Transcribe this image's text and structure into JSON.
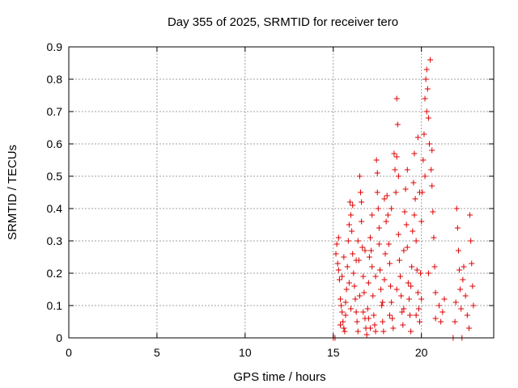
{
  "chart_data": {
    "type": "scatter",
    "title": "Day 355 of 2025, SRMTID for receiver tero",
    "xlabel": "GPS time / hours",
    "ylabel": "SRMTID / TECUs",
    "xlim": [
      0,
      24.1
    ],
    "ylim": [
      0,
      0.9
    ],
    "xticks": [
      "0",
      "5",
      "10",
      "15",
      "20"
    ],
    "xtick_values": [
      0,
      5,
      10,
      15,
      20
    ],
    "yticks": [
      "0",
      "0.1",
      "0.2",
      "0.3",
      "0.4",
      "0.5",
      "0.6",
      "0.7",
      "0.8",
      "0.9"
    ],
    "ytick_values": [
      0,
      0.1,
      0.2,
      0.3,
      0.4,
      0.5,
      0.6,
      0.7,
      0.8,
      0.9
    ],
    "grid": true,
    "marker": "+",
    "marker_color": "#dd0000",
    "series": [
      {
        "name": "tero",
        "points": [
          [
            15.0,
            0.0
          ],
          [
            15.1,
            0.0
          ],
          [
            15.15,
            0.26
          ],
          [
            15.2,
            0.29
          ],
          [
            15.25,
            0.23
          ],
          [
            15.3,
            0.21
          ],
          [
            15.35,
            0.18
          ],
          [
            15.4,
            0.12
          ],
          [
            15.45,
            0.1
          ],
          [
            15.5,
            0.08
          ],
          [
            15.55,
            0.05
          ],
          [
            15.6,
            0.03
          ],
          [
            15.65,
            0.02
          ],
          [
            15.7,
            0.11
          ],
          [
            15.75,
            0.15
          ],
          [
            15.8,
            0.22
          ],
          [
            15.85,
            0.3
          ],
          [
            15.9,
            0.35
          ],
          [
            15.95,
            0.42
          ],
          [
            16.0,
            0.38
          ],
          [
            16.05,
            0.33
          ],
          [
            16.1,
            0.26
          ],
          [
            16.15,
            0.2
          ],
          [
            16.2,
            0.16
          ],
          [
            16.25,
            0.12
          ],
          [
            16.3,
            0.08
          ],
          [
            16.35,
            0.05
          ],
          [
            16.4,
            0.02
          ],
          [
            16.45,
            0.24
          ],
          [
            16.5,
            0.5
          ],
          [
            16.55,
            0.45
          ],
          [
            16.6,
            0.36
          ],
          [
            16.65,
            0.28
          ],
          [
            16.7,
            0.19
          ],
          [
            16.75,
            0.14
          ],
          [
            16.8,
            0.06
          ],
          [
            16.85,
            0.03
          ],
          [
            16.9,
            0.01
          ],
          [
            16.95,
            0.09
          ],
          [
            17.0,
            0.17
          ],
          [
            17.05,
            0.25
          ],
          [
            17.1,
            0.31
          ],
          [
            17.15,
            0.27
          ],
          [
            17.2,
            0.22
          ],
          [
            17.25,
            0.13
          ],
          [
            17.3,
            0.07
          ],
          [
            17.35,
            0.04
          ],
          [
            17.4,
            0.02
          ],
          [
            17.45,
            0.55
          ],
          [
            17.5,
            0.51
          ],
          [
            17.55,
            0.4
          ],
          [
            17.6,
            0.34
          ],
          [
            17.65,
            0.21
          ],
          [
            17.7,
            0.15
          ],
          [
            17.75,
            0.1
          ],
          [
            17.8,
            0.05
          ],
          [
            17.85,
            0.02
          ],
          [
            17.9,
            0.18
          ],
          [
            17.95,
            0.26
          ],
          [
            18.0,
            0.36
          ],
          [
            18.05,
            0.44
          ],
          [
            18.1,
            0.38
          ],
          [
            18.15,
            0.29
          ],
          [
            18.2,
            0.23
          ],
          [
            18.25,
            0.16
          ],
          [
            18.3,
            0.11
          ],
          [
            18.35,
            0.06
          ],
          [
            18.4,
            0.03
          ],
          [
            18.45,
            0.57
          ],
          [
            18.5,
            0.52
          ],
          [
            18.55,
            0.45
          ],
          [
            18.6,
            0.74
          ],
          [
            18.65,
            0.66
          ],
          [
            18.7,
            0.32
          ],
          [
            18.75,
            0.24
          ],
          [
            18.8,
            0.19
          ],
          [
            18.85,
            0.13
          ],
          [
            18.9,
            0.08
          ],
          [
            18.95,
            0.04
          ],
          [
            19.0,
            0.27
          ],
          [
            19.05,
            0.39
          ],
          [
            19.1,
            0.46
          ],
          [
            19.15,
            0.35
          ],
          [
            19.2,
            0.28
          ],
          [
            19.25,
            0.17
          ],
          [
            19.3,
            0.12
          ],
          [
            19.35,
            0.07
          ],
          [
            19.4,
            0.02
          ],
          [
            19.45,
            0.22
          ],
          [
            19.5,
            0.33
          ],
          [
            19.55,
            0.48
          ],
          [
            19.6,
            0.57
          ],
          [
            19.65,
            0.43
          ],
          [
            19.7,
            0.3
          ],
          [
            19.75,
            0.21
          ],
          [
            19.8,
            0.14
          ],
          [
            19.85,
            0.09
          ],
          [
            19.9,
            0.05
          ],
          [
            19.95,
            0.2
          ],
          [
            20.0,
            0.36
          ],
          [
            20.05,
            0.45
          ],
          [
            20.1,
            0.55
          ],
          [
            20.15,
            0.63
          ],
          [
            20.2,
            0.74
          ],
          [
            20.25,
            0.8
          ],
          [
            20.3,
            0.83
          ],
          [
            20.35,
            0.77
          ],
          [
            20.4,
            0.68
          ],
          [
            20.45,
            0.6
          ],
          [
            20.5,
            0.86
          ],
          [
            20.55,
            0.52
          ],
          [
            20.6,
            0.47
          ],
          [
            20.65,
            0.39
          ],
          [
            20.7,
            0.31
          ],
          [
            20.75,
            0.22
          ],
          [
            20.8,
            0.14
          ],
          [
            21.0,
            0.1
          ],
          [
            21.1,
            0.05
          ],
          [
            21.2,
            0.08
          ],
          [
            21.3,
            0.12
          ],
          [
            21.8,
            0.0
          ],
          [
            21.9,
            0.05
          ],
          [
            21.95,
            0.11
          ],
          [
            22.0,
            0.4
          ],
          [
            22.05,
            0.34
          ],
          [
            22.1,
            0.27
          ],
          [
            22.15,
            0.21
          ],
          [
            22.2,
            0.15
          ],
          [
            22.25,
            0.09
          ],
          [
            22.3,
            0.0
          ],
          [
            22.35,
            0.18
          ],
          [
            22.4,
            0.22
          ],
          [
            22.5,
            0.13
          ],
          [
            22.6,
            0.07
          ],
          [
            22.7,
            0.03
          ],
          [
            22.75,
            0.38
          ],
          [
            22.8,
            0.3
          ],
          [
            22.85,
            0.23
          ],
          [
            22.9,
            0.16
          ],
          [
            22.95,
            0.1
          ],
          [
            15.3,
            0.31
          ],
          [
            15.6,
            0.25
          ],
          [
            16.1,
            0.41
          ],
          [
            16.4,
            0.3
          ],
          [
            16.8,
            0.27
          ],
          [
            17.2,
            0.38
          ],
          [
            17.6,
            0.29
          ],
          [
            17.9,
            0.43
          ],
          [
            18.3,
            0.4
          ],
          [
            18.7,
            0.5
          ],
          [
            19.2,
            0.52
          ],
          [
            19.6,
            0.38
          ],
          [
            19.9,
            0.45
          ],
          [
            20.2,
            0.5
          ],
          [
            20.6,
            0.58
          ],
          [
            20.3,
            0.7
          ],
          [
            19.8,
            0.62
          ],
          [
            18.6,
            0.56
          ],
          [
            17.5,
            0.45
          ],
          [
            16.6,
            0.42
          ],
          [
            15.5,
            0.19
          ],
          [
            15.9,
            0.17
          ],
          [
            16.3,
            0.24
          ],
          [
            16.7,
            0.08
          ],
          [
            17.1,
            0.03
          ],
          [
            17.4,
            0.19
          ],
          [
            17.8,
            0.11
          ],
          [
            18.2,
            0.07
          ],
          [
            18.6,
            0.15
          ],
          [
            19.0,
            0.09
          ],
          [
            19.4,
            0.16
          ],
          [
            19.7,
            0.07
          ],
          [
            20.0,
            0.12
          ],
          [
            20.4,
            0.2
          ],
          [
            20.8,
            0.06
          ],
          [
            15.4,
            0.04
          ],
          [
            15.7,
            0.07
          ],
          [
            16.0,
            0.09
          ],
          [
            16.5,
            0.13
          ],
          [
            17.0,
            0.06
          ]
        ]
      }
    ]
  }
}
